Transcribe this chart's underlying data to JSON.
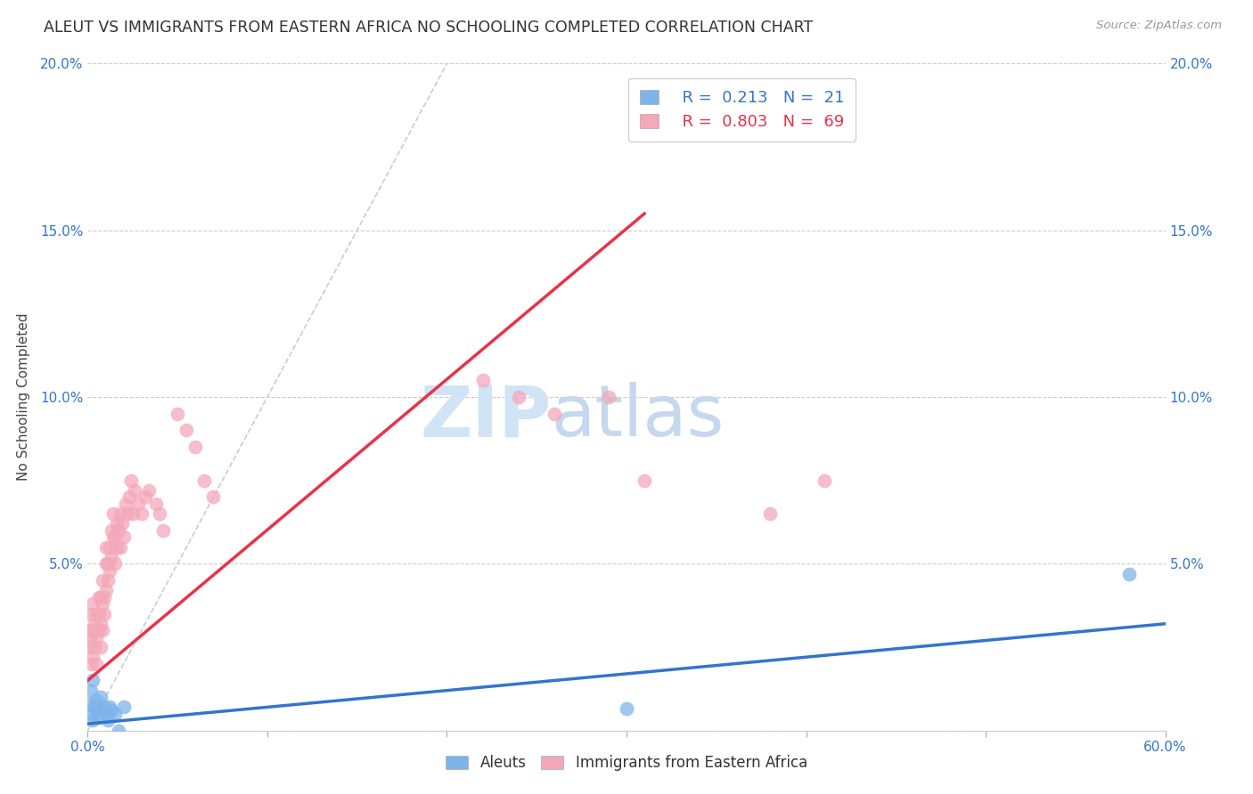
{
  "title": "ALEUT VS IMMIGRANTS FROM EASTERN AFRICA NO SCHOOLING COMPLETED CORRELATION CHART",
  "source": "Source: ZipAtlas.com",
  "ylabel": "No Schooling Completed",
  "xlim": [
    0.0,
    0.6
  ],
  "ylim": [
    0.0,
    0.2
  ],
  "yticks": [
    0.0,
    0.05,
    0.1,
    0.15,
    0.2
  ],
  "ytick_labels_left": [
    "",
    "5.0%",
    "10.0%",
    "15.0%",
    "20.0%"
  ],
  "ytick_labels_right": [
    "",
    "5.0%",
    "10.0%",
    "15.0%",
    "20.0%"
  ],
  "xtick_labels": [
    "0.0%",
    "",
    "",
    "",
    "",
    "",
    "60.0%"
  ],
  "xticks": [
    0.0,
    0.1,
    0.2,
    0.3,
    0.4,
    0.5,
    0.6
  ],
  "legend_blue_R": "0.213",
  "legend_blue_N": "21",
  "legend_pink_R": "0.803",
  "legend_pink_N": "69",
  "blue_color": "#7EB4EA",
  "pink_color": "#F4A7B9",
  "blue_line_color": "#3375CC",
  "pink_line_color": "#E8324A",
  "diag_line_color": "#CCCCCC",
  "background_color": "#FFFFFF",
  "watermark_zip": "ZIP",
  "watermark_atlas": "atlas",
  "watermark_color": "#D0E4F5",
  "blue_scatter_x": [
    0.001,
    0.002,
    0.002,
    0.003,
    0.003,
    0.004,
    0.005,
    0.005,
    0.006,
    0.007,
    0.008,
    0.009,
    0.01,
    0.011,
    0.012,
    0.013,
    0.015,
    0.017,
    0.02,
    0.3,
    0.58
  ],
  "blue_scatter_y": [
    0.008,
    0.012,
    0.005,
    0.015,
    0.003,
    0.007,
    0.006,
    0.009,
    0.004,
    0.01,
    0.006,
    0.007,
    0.005,
    0.003,
    0.007,
    0.006,
    0.005,
    0.0,
    0.007,
    0.0065,
    0.047
  ],
  "pink_scatter_x": [
    0.001,
    0.001,
    0.002,
    0.002,
    0.002,
    0.003,
    0.003,
    0.003,
    0.004,
    0.004,
    0.005,
    0.005,
    0.005,
    0.006,
    0.006,
    0.006,
    0.007,
    0.007,
    0.007,
    0.008,
    0.008,
    0.008,
    0.009,
    0.009,
    0.01,
    0.01,
    0.01,
    0.011,
    0.011,
    0.012,
    0.012,
    0.013,
    0.013,
    0.014,
    0.014,
    0.015,
    0.015,
    0.016,
    0.016,
    0.017,
    0.018,
    0.018,
    0.019,
    0.02,
    0.021,
    0.022,
    0.023,
    0.024,
    0.025,
    0.026,
    0.028,
    0.03,
    0.032,
    0.034,
    0.038,
    0.04,
    0.042,
    0.05,
    0.055,
    0.06,
    0.065,
    0.07,
    0.38,
    0.41,
    0.29,
    0.22,
    0.26,
    0.24,
    0.31
  ],
  "pink_scatter_y": [
    0.025,
    0.03,
    0.02,
    0.028,
    0.035,
    0.022,
    0.03,
    0.038,
    0.025,
    0.032,
    0.02,
    0.028,
    0.035,
    0.03,
    0.035,
    0.04,
    0.025,
    0.032,
    0.04,
    0.03,
    0.038,
    0.045,
    0.035,
    0.04,
    0.042,
    0.05,
    0.055,
    0.045,
    0.05,
    0.048,
    0.055,
    0.052,
    0.06,
    0.058,
    0.065,
    0.05,
    0.058,
    0.055,
    0.062,
    0.06,
    0.055,
    0.065,
    0.062,
    0.058,
    0.068,
    0.065,
    0.07,
    0.075,
    0.065,
    0.072,
    0.068,
    0.065,
    0.07,
    0.072,
    0.068,
    0.065,
    0.06,
    0.095,
    0.09,
    0.085,
    0.075,
    0.07,
    0.065,
    0.075,
    0.1,
    0.105,
    0.095,
    0.1,
    0.075
  ],
  "blue_line_x": [
    0.0,
    0.6
  ],
  "blue_line_y": [
    0.002,
    0.032
  ],
  "pink_line_x": [
    0.0,
    0.31
  ],
  "pink_line_y": [
    0.015,
    0.155
  ],
  "diag_line_x": [
    0.0,
    0.2
  ],
  "diag_line_y": [
    0.0,
    0.2
  ]
}
